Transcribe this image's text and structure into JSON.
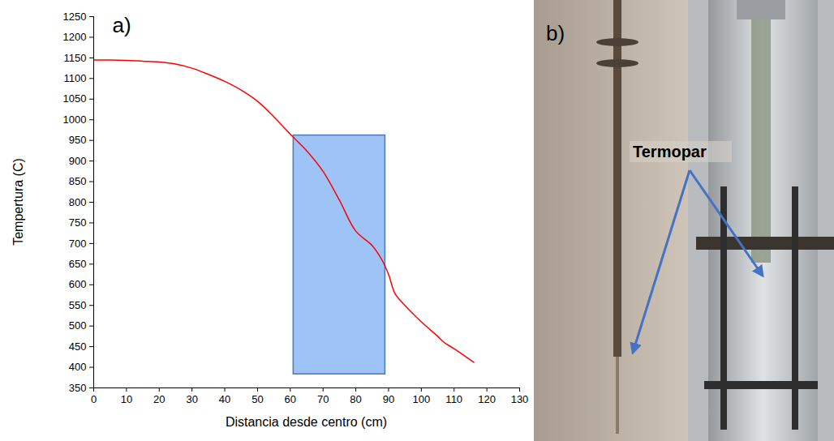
{
  "chart_data": {
    "type": "line",
    "annotations": [
      "a)"
    ],
    "x_label": "Distancia desde centro (cm)",
    "y_label": "Tempertura (C)",
    "x": [
      0,
      5,
      10,
      15,
      20,
      25,
      30,
      35,
      40,
      45,
      50,
      55,
      60,
      65,
      70,
      75,
      80,
      85,
      88,
      90,
      92,
      95,
      100,
      105,
      107,
      110,
      116
    ],
    "series": [
      {
        "color": "#ff0000",
        "values": [
          1145,
          1145,
          1144,
          1142,
          1140,
          1135,
          1125,
          1110,
          1093,
          1072,
          1045,
          1007,
          965,
          925,
          875,
          805,
          730,
          695,
          660,
          625,
          578,
          550,
          510,
          475,
          460,
          445,
          412
        ]
      }
    ],
    "regions": [
      {
        "x0": 61,
        "x1": 89,
        "y0": 383,
        "y1": 962,
        "color": "#9dc3f7",
        "border_color": "#4a78b8"
      }
    ],
    "xlim": [
      0,
      130
    ],
    "xticks": [
      0,
      10,
      20,
      30,
      40,
      50,
      60,
      70,
      80,
      90,
      100,
      110,
      120,
      130
    ],
    "ylim": [
      350,
      1250
    ],
    "yticks": [
      350,
      400,
      450,
      500,
      550,
      600,
      650,
      700,
      750,
      800,
      850,
      900,
      950,
      1000,
      1050,
      1100,
      1150,
      1200,
      1250
    ],
    "grid": false
  },
  "image_b": {
    "panel_label": "b)",
    "annotation": "Termopar",
    "arrow_color": "#4472c4"
  }
}
